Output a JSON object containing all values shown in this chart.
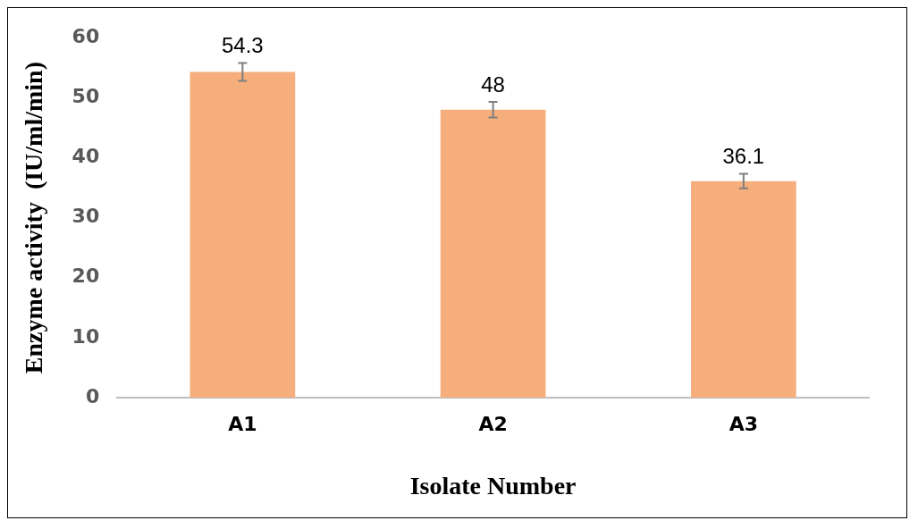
{
  "chart_data": {
    "type": "bar",
    "xlabel": "Isolate Number",
    "ylabel": "Enzyme activity  (IU/ml/min)",
    "categories": [
      "A1",
      "A2",
      "A3"
    ],
    "values": [
      54.3,
      48,
      36.1
    ],
    "errors": [
      1.5,
      1.3,
      1.2
    ],
    "color": "#f5ae7c",
    "ylim": [
      0,
      60
    ],
    "yticks": [
      0,
      10,
      20,
      30,
      40,
      50,
      60
    ],
    "data_labels": true,
    "grid": false,
    "legend": false
  }
}
